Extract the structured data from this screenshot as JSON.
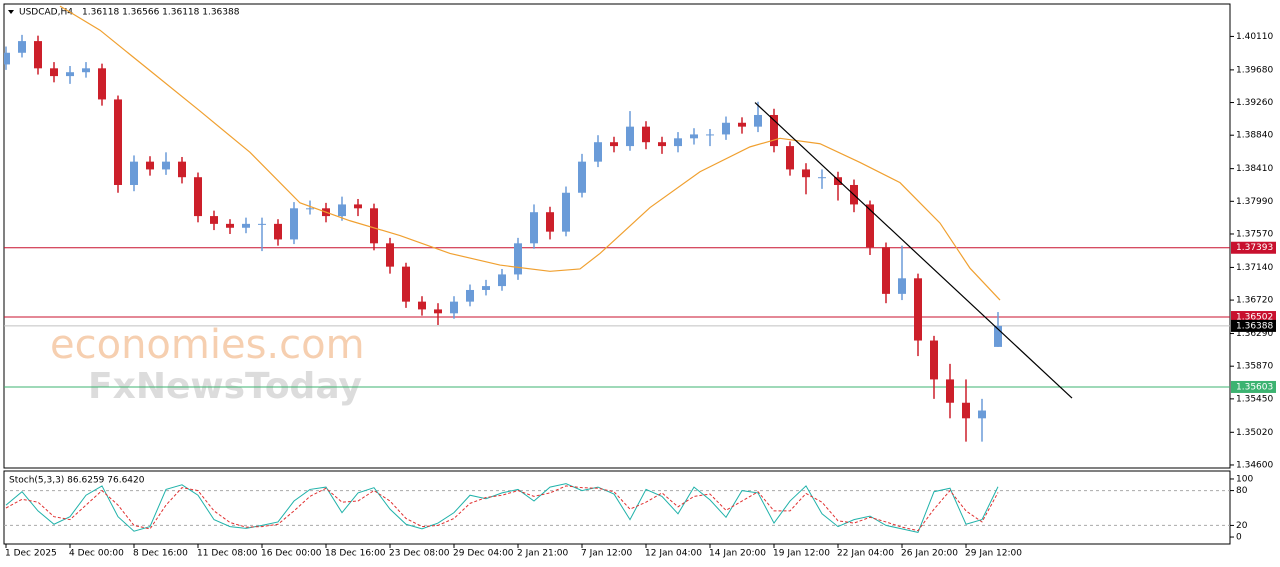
{
  "chart_data": [
    {
      "type": "candlestick",
      "title": "USDCAD,H4",
      "ohlc_label": "1.36118 1.36566 1.36118 1.36388",
      "watermark": [
        "economies.com",
        "FxNewsToday"
      ],
      "up_color": "#6a9bd8",
      "down_color": "#cc1f2a",
      "xlim": [
        -0.5,
        306
      ],
      "ylim": [
        1.34561,
        1.40527
      ],
      "xticks": [
        {
          "value": 0,
          "label": "1 Dec 2025"
        },
        {
          "value": 16,
          "label": "4 Dec 00:00"
        },
        {
          "value": 32,
          "label": "8 Dec 16:00"
        },
        {
          "value": 48,
          "label": "11 Dec 08:00"
        },
        {
          "value": 64,
          "label": "16 Dec 00:00"
        },
        {
          "value": 80,
          "label": "18 Dec 16:00"
        },
        {
          "value": 96,
          "label": "23 Dec 08:00"
        },
        {
          "value": 112,
          "label": "29 Dec 04:00"
        },
        {
          "value": 128,
          "label": "2 Jan 21:00"
        },
        {
          "value": 144,
          "label": "7 Jan 12:00"
        },
        {
          "value": 160,
          "label": "12 Jan 04:00"
        },
        {
          "value": 176,
          "label": "14 Jan 20:00"
        },
        {
          "value": 192,
          "label": "19 Jan 12:00"
        },
        {
          "value": 208,
          "label": "22 Jan 04:00"
        },
        {
          "value": 224,
          "label": "26 Jan 20:00"
        },
        {
          "value": 240,
          "label": "29 Jan 12:00"
        }
      ],
      "yticks": [
        {
          "value": 1.4011,
          "label": "1.40110"
        },
        {
          "value": 1.3968,
          "label": "1.39680"
        },
        {
          "value": 1.3926,
          "label": "1.39260"
        },
        {
          "value": 1.3884,
          "label": "1.38840"
        },
        {
          "value": 1.3841,
          "label": "1.38410"
        },
        {
          "value": 1.3799,
          "label": "1.37990"
        },
        {
          "value": 1.3757,
          "label": "1.37570"
        },
        {
          "value": 1.3714,
          "label": "1.37140"
        },
        {
          "value": 1.3672,
          "label": "1.36720"
        },
        {
          "value": 1.3629,
          "label": "1.36290"
        },
        {
          "value": 1.3587,
          "label": "1.35870"
        },
        {
          "value": 1.3545,
          "label": "1.35450"
        },
        {
          "value": 1.3502,
          "label": "1.35020"
        },
        {
          "value": 1.346,
          "label": "1.34600"
        }
      ],
      "levels": [
        {
          "value": 1.37393,
          "color": "#c8102e"
        },
        {
          "value": 1.36502,
          "color": "#c8102e"
        },
        {
          "value": 1.36388,
          "color": "#000000"
        },
        {
          "value": 1.35603,
          "color": "#3cb371"
        }
      ],
      "x": [
        0,
        4,
        8,
        12,
        16,
        20,
        24,
        28,
        32,
        36,
        40,
        44,
        48,
        52,
        56,
        60,
        64,
        68,
        72,
        76,
        80,
        84,
        88,
        92,
        96,
        100,
        104,
        108,
        112,
        116,
        120,
        124,
        128,
        132,
        136,
        140,
        144,
        148,
        152,
        156,
        160,
        164,
        168,
        172,
        176,
        180,
        184,
        188,
        192,
        196,
        200,
        204,
        208,
        212,
        216,
        220,
        224,
        228,
        232,
        236,
        240,
        244,
        248
      ],
      "open": [
        1.3975,
        1.399,
        1.4005,
        1.397,
        1.396,
        1.3965,
        1.397,
        1.393,
        1.382,
        1.385,
        1.384,
        1.385,
        1.383,
        1.378,
        1.377,
        1.3765,
        1.377,
        1.377,
        1.375,
        1.379,
        1.379,
        1.378,
        1.3795,
        1.379,
        1.3745,
        1.3715,
        1.367,
        1.366,
        1.3655,
        1.367,
        1.3685,
        1.369,
        1.3705,
        1.3745,
        1.3785,
        1.376,
        1.381,
        1.385,
        1.3875,
        1.387,
        1.3895,
        1.3875,
        1.387,
        1.388,
        1.3885,
        1.3885,
        1.39,
        1.3895,
        1.391,
        1.387,
        1.384,
        1.383,
        1.383,
        1.382,
        1.3795,
        1.374,
        1.368,
        1.37,
        1.362,
        1.357,
        1.354,
        1.352,
        1.36118
      ],
      "high": [
        1.3998,
        1.4013,
        1.4012,
        1.3978,
        1.3973,
        1.3978,
        1.3976,
        1.3935,
        1.3858,
        1.3857,
        1.3862,
        1.3856,
        1.3836,
        1.3787,
        1.3776,
        1.3778,
        1.3778,
        1.3776,
        1.3798,
        1.38,
        1.3797,
        1.3805,
        1.3802,
        1.3796,
        1.3752,
        1.372,
        1.3677,
        1.3668,
        1.3677,
        1.3692,
        1.3698,
        1.3712,
        1.3752,
        1.3795,
        1.3792,
        1.3818,
        1.386,
        1.3884,
        1.3882,
        1.3915,
        1.3902,
        1.3882,
        1.3888,
        1.3893,
        1.3892,
        1.3908,
        1.3907,
        1.3927,
        1.3918,
        1.3876,
        1.3848,
        1.384,
        1.3837,
        1.3827,
        1.38,
        1.3746,
        1.3742,
        1.3706,
        1.3626,
        1.359,
        1.357,
        1.3545,
        1.36566
      ],
      "low": [
        1.3968,
        1.3984,
        1.3962,
        1.3952,
        1.395,
        1.3958,
        1.3922,
        1.381,
        1.3812,
        1.3832,
        1.3833,
        1.3822,
        1.3772,
        1.3762,
        1.3757,
        1.3758,
        1.3735,
        1.3742,
        1.3744,
        1.3782,
        1.3772,
        1.3774,
        1.378,
        1.3736,
        1.3706,
        1.3662,
        1.3652,
        1.364,
        1.3648,
        1.3664,
        1.3678,
        1.3684,
        1.3698,
        1.3738,
        1.375,
        1.3754,
        1.3804,
        1.3843,
        1.3862,
        1.3864,
        1.3866,
        1.386,
        1.3862,
        1.3872,
        1.387,
        1.3878,
        1.3886,
        1.3888,
        1.3862,
        1.3832,
        1.3808,
        1.3815,
        1.38,
        1.3785,
        1.373,
        1.3668,
        1.3672,
        1.36,
        1.3545,
        1.352,
        1.349,
        1.349,
        1.36118
      ],
      "close": [
        1.399,
        1.4005,
        1.397,
        1.396,
        1.3965,
        1.397,
        1.393,
        1.382,
        1.385,
        1.384,
        1.385,
        1.383,
        1.378,
        1.377,
        1.3765,
        1.377,
        1.377,
        1.375,
        1.379,
        1.379,
        1.378,
        1.3795,
        1.379,
        1.3745,
        1.3715,
        1.367,
        1.366,
        1.3655,
        1.367,
        1.3685,
        1.369,
        1.3705,
        1.3745,
        1.3785,
        1.376,
        1.381,
        1.385,
        1.3875,
        1.387,
        1.3895,
        1.3875,
        1.387,
        1.388,
        1.3885,
        1.3885,
        1.39,
        1.3895,
        1.391,
        1.387,
        1.384,
        1.383,
        1.383,
        1.382,
        1.3795,
        1.374,
        1.368,
        1.37,
        1.362,
        1.357,
        1.354,
        1.352,
        1.353,
        1.36388
      ],
      "moving_average": {
        "color": "#f0a030",
        "x": [
          13.5,
          23.5,
          36,
          48.5,
          61,
          73.5,
          86,
          98.5,
          111,
          123.5,
          136,
          143.5,
          148.5,
          161,
          173.5,
          186,
          193.5,
          203.5,
          213.5,
          223.5,
          233.5,
          241,
          248.5
        ],
        "values": [
          1.405,
          1.4019,
          1.3967,
          1.3915,
          1.3862,
          1.3797,
          1.3774,
          1.3755,
          1.3732,
          1.3717,
          1.3709,
          1.3712,
          1.3732,
          1.3791,
          1.3837,
          1.3869,
          1.388,
          1.3873,
          1.3849,
          1.3823,
          1.3771,
          1.3713,
          1.3672
        ]
      },
      "trendline": {
        "color": "#000000",
        "x": [
          187.25,
          266.5
        ],
        "values": [
          1.3926,
          1.3546
        ]
      }
    },
    {
      "type": "line",
      "title": "Stoch(5,3,3) 86.6259 76.6420",
      "xlim": [
        -0.5,
        306
      ],
      "ylim": [
        -12,
        112
      ],
      "yticks": [
        0,
        20,
        80,
        100
      ],
      "levels": [
        20,
        80
      ],
      "x": [
        0,
        4,
        8,
        12,
        16,
        20,
        24,
        28,
        32,
        36,
        40,
        44,
        48,
        52,
        56,
        60,
        64,
        68,
        72,
        76,
        80,
        84,
        88,
        92,
        96,
        100,
        104,
        108,
        112,
        116,
        120,
        124,
        128,
        132,
        136,
        140,
        144,
        148,
        152,
        156,
        160,
        164,
        168,
        172,
        176,
        180,
        184,
        188,
        192,
        196,
        200,
        204,
        208,
        212,
        216,
        220,
        224,
        228,
        232,
        236,
        240,
        244,
        248
      ],
      "series": [
        {
          "color": "#20b2aa",
          "dashed": false,
          "values": [
            55,
            78,
            45,
            22,
            35,
            72,
            88,
            35,
            10,
            18,
            82,
            90,
            72,
            30,
            18,
            15,
            20,
            26,
            62,
            82,
            86,
            42,
            76,
            85,
            48,
            22,
            14,
            24,
            42,
            72,
            66,
            76,
            82,
            62,
            86,
            92,
            80,
            86,
            74,
            30,
            82,
            70,
            40,
            86,
            64,
            34,
            80,
            76,
            24,
            62,
            88,
            40,
            18,
            30,
            36,
            20,
            14,
            8,
            78,
            84,
            22,
            30,
            86.6259
          ]
        },
        {
          "color": "#e03030",
          "dashed": true,
          "values": [
            50,
            65,
            60,
            35,
            30,
            55,
            80,
            55,
            20,
            14,
            55,
            85,
            80,
            45,
            25,
            17,
            18,
            22,
            45,
            70,
            84,
            60,
            62,
            80,
            62,
            32,
            18,
            20,
            32,
            58,
            68,
            72,
            80,
            70,
            76,
            88,
            85,
            84,
            78,
            48,
            60,
            76,
            52,
            70,
            74,
            46,
            62,
            78,
            45,
            45,
            75,
            60,
            28,
            24,
            34,
            26,
            17,
            11,
            48,
            80,
            45,
            26,
            76.642
          ]
        }
      ]
    }
  ]
}
